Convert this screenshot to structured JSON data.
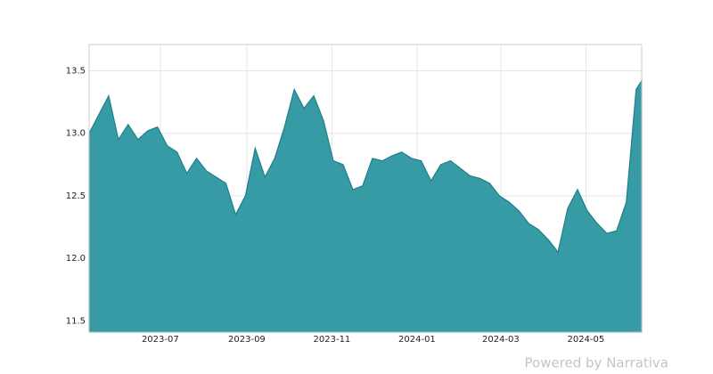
{
  "chart_data": {
    "type": "area",
    "x": [
      "2023-05-11",
      "2023-05-18",
      "2023-05-25",
      "2023-06-01",
      "2023-06-08",
      "2023-06-15",
      "2023-06-22",
      "2023-06-29",
      "2023-07-06",
      "2023-07-13",
      "2023-07-20",
      "2023-07-27",
      "2023-08-03",
      "2023-08-10",
      "2023-08-17",
      "2023-08-24",
      "2023-08-31",
      "2023-09-07",
      "2023-09-14",
      "2023-09-21",
      "2023-09-28",
      "2023-10-05",
      "2023-10-12",
      "2023-10-19",
      "2023-10-26",
      "2023-11-02",
      "2023-11-09",
      "2023-11-16",
      "2023-11-23",
      "2023-11-30",
      "2023-12-07",
      "2023-12-14",
      "2023-12-21",
      "2023-12-28",
      "2024-01-04",
      "2024-01-11",
      "2024-01-18",
      "2024-01-25",
      "2024-02-01",
      "2024-02-08",
      "2024-02-15",
      "2024-02-22",
      "2024-02-29",
      "2024-03-07",
      "2024-03-14",
      "2024-03-21",
      "2024-03-28",
      "2024-04-04",
      "2024-04-11",
      "2024-04-18",
      "2024-04-25",
      "2024-05-02",
      "2024-05-09",
      "2024-05-16",
      "2024-05-23",
      "2024-05-30",
      "2024-06-06",
      "2024-06-10"
    ],
    "series": [
      {
        "color": "#3399a3",
        "values": [
          13.0,
          13.15,
          13.3,
          12.95,
          13.07,
          12.95,
          13.02,
          13.05,
          12.9,
          12.85,
          12.68,
          12.8,
          12.7,
          12.65,
          12.6,
          12.35,
          12.5,
          12.88,
          12.65,
          12.8,
          13.05,
          13.35,
          13.2,
          13.3,
          13.1,
          12.78,
          12.75,
          12.55,
          12.58,
          12.8,
          12.78,
          12.82,
          12.85,
          12.8,
          12.78,
          12.62,
          12.75,
          12.78,
          12.72,
          12.66,
          12.64,
          12.6,
          12.5,
          12.45,
          12.38,
          12.28,
          12.23,
          12.15,
          12.05,
          12.4,
          12.55,
          12.38,
          12.28,
          12.2,
          12.22,
          12.45,
          13.35,
          13.42
        ]
      }
    ],
    "xlim": [
      "2023-05-11",
      "2024-06-10"
    ],
    "xticks": [
      {
        "value": "2023-07-01",
        "label": "2023-07"
      },
      {
        "value": "2023-09-01",
        "label": "2023-09"
      },
      {
        "value": "2023-11-01",
        "label": "2023-11"
      },
      {
        "value": "2024-01-01",
        "label": "2024-01"
      },
      {
        "value": "2024-03-01",
        "label": "2024-03"
      },
      {
        "value": "2024-05-01",
        "label": "2024-05"
      }
    ],
    "ylim": [
      11.41,
      13.71
    ],
    "yticks": [
      {
        "value": 11.5,
        "label": "11.5"
      },
      {
        "value": 12,
        "label": "12.0"
      },
      {
        "value": 12.5,
        "label": "12.5"
      },
      {
        "value": 13,
        "label": "13.0"
      },
      {
        "value": 13.5,
        "label": "13.5"
      }
    ],
    "grid": true,
    "footer": "Powered by Narrativa"
  }
}
